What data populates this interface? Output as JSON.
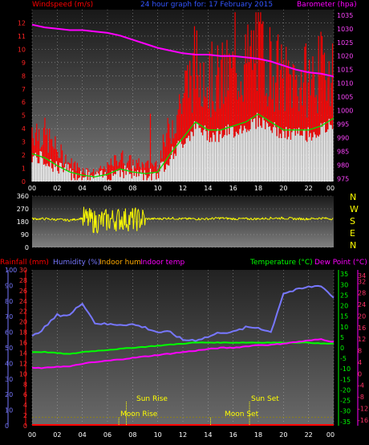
{
  "colors": {
    "windspeed": "#ff0000",
    "gust_fill": "#ffffff",
    "title": "#3355ff",
    "barometer": "#ff00ff",
    "direction": "#ffff00",
    "rainfall": "#ff0000",
    "humidity": "#7777ff",
    "indoor_hum": "#ffaa00",
    "indoor_temp": "#ff00ff",
    "temperature": "#00ff00",
    "dew_point": "#ff00ff",
    "moon_sun": "#ffff00",
    "axis_text": "#ffffff"
  },
  "header": {
    "windspeed": "Windspeed (m/s)",
    "title": "24 hour graph for: 17 February 2015",
    "barometer": "Barometer (hpa)",
    "rainfall": "Rainfall (mm)",
    "humidity": "Humidity (%)",
    "indoor_hum": "Indoor hum",
    "indoor_temp": "Indoor temp",
    "temperature": "Temperature (°C)",
    "dew_point": "Dew Point (°C)"
  },
  "compass": [
    "N",
    "W",
    "S",
    "E",
    "N"
  ],
  "events": {
    "sun_rise": "Sun Rise",
    "sun_set": "Sun Set",
    "moon_rise": "Moon Rise",
    "moon_set": "Moon Set"
  },
  "chart_data": [
    {
      "type": "line",
      "title": "24 hour graph for: 17 February 2015",
      "ylabel": "Windspeed (m/s)",
      "y2label": "Barometer (hpa)",
      "x_ticks": [
        "00",
        "02",
        "04",
        "06",
        "08",
        "10",
        "12",
        "14",
        "16",
        "18",
        "20",
        "22",
        "00"
      ],
      "ylim": [
        0,
        13
      ],
      "y_ticks": [
        0,
        1,
        2,
        3,
        4,
        5,
        6,
        7,
        8,
        9,
        10,
        11,
        12
      ],
      "y2lim": [
        974,
        1037
      ],
      "y2_ticks": [
        975,
        980,
        985,
        990,
        995,
        1000,
        1005,
        1010,
        1015,
        1020,
        1025,
        1030,
        1035
      ],
      "hours": [
        0,
        1,
        2,
        3,
        4,
        5,
        6,
        7,
        8,
        9,
        10,
        11,
        12,
        13,
        14,
        15,
        16,
        17,
        18,
        19,
        20,
        21,
        22,
        23,
        24
      ],
      "series": [
        {
          "name": "Windspeed (m/s)",
          "values": [
            3.5,
            3.0,
            2.0,
            1.2,
            0.8,
            0.6,
            0.9,
            1.6,
            1.2,
            1.0,
            1.2,
            3.5,
            5.5,
            7.5,
            6.5,
            6.5,
            7.0,
            7.5,
            8.5,
            7.5,
            6.5,
            6.5,
            6.5,
            7.0,
            8.0
          ]
        },
        {
          "name": "Barometer (hpa)",
          "values": [
            1031.5,
            1030.5,
            1030.0,
            1029.5,
            1029.5,
            1029.0,
            1028.5,
            1027.5,
            1026.0,
            1024.5,
            1023.0,
            1022.0,
            1021.0,
            1020.5,
            1020.5,
            1020.0,
            1020.0,
            1019.5,
            1019.0,
            1018.0,
            1016.5,
            1015.0,
            1014.0,
            1013.5,
            1012.5
          ]
        }
      ]
    },
    {
      "type": "scatter",
      "ylim": [
        0,
        360
      ],
      "y_ticks": [
        0,
        90,
        180,
        270,
        360
      ],
      "hours": [
        0,
        1,
        2,
        3,
        4,
        5,
        6,
        7,
        8,
        9,
        10,
        11,
        12,
        13,
        14,
        15,
        16,
        17,
        18,
        19,
        20,
        21,
        22,
        23,
        24
      ],
      "series": [
        {
          "values": [
            200,
            200,
            195,
            190,
            205,
            180,
            190,
            200,
            195,
            200,
            200,
            205,
            200,
            200,
            200,
            205,
            200,
            200,
            200,
            205,
            205,
            200,
            200,
            205,
            200
          ]
        }
      ]
    },
    {
      "type": "line",
      "x_ticks": [
        "00",
        "02",
        "04",
        "06",
        "08",
        "10",
        "12",
        "14",
        "16",
        "18",
        "20",
        "22",
        "00"
      ],
      "ylim": [
        0,
        100
      ],
      "humidity_ticks": [
        0,
        10,
        20,
        30,
        40,
        50,
        60,
        70,
        80,
        90,
        100
      ],
      "rain_ticks": [
        0,
        2,
        4,
        6,
        8,
        10,
        12,
        14,
        16,
        18,
        20,
        22,
        24,
        26,
        28,
        30
      ],
      "temp_ticks": [
        -35,
        -30,
        -25,
        -20,
        -15,
        -10,
        -5,
        0,
        5,
        10,
        15,
        20,
        25,
        30,
        35
      ],
      "dew_ticks": [
        -16,
        -12,
        -8,
        -4,
        0,
        4,
        8,
        12,
        16,
        20,
        24,
        28,
        32,
        34
      ],
      "hours": [
        0,
        1,
        2,
        3,
        4,
        5,
        6,
        7,
        8,
        9,
        10,
        11,
        12,
        13,
        14,
        15,
        16,
        17,
        18,
        19,
        20,
        21,
        22,
        23,
        24
      ],
      "series": [
        {
          "name": "Humidity (%)",
          "values": [
            57,
            63,
            71,
            71,
            79,
            66,
            65,
            65,
            65,
            63,
            60,
            60,
            55,
            55,
            57,
            60,
            60,
            63,
            63,
            60,
            85,
            87,
            89,
            90,
            82
          ]
        },
        {
          "name": "Temperature (°C)",
          "values": [
            -2.0,
            -2.0,
            -2.5,
            -3.0,
            -2.0,
            -1.5,
            -1.0,
            -0.5,
            0.0,
            0.5,
            1.0,
            1.5,
            2.0,
            2.5,
            2.5,
            2.5,
            2.5,
            2.5,
            2.5,
            2.5,
            2.5,
            2.5,
            2.5,
            2.0,
            2.0
          ]
        },
        {
          "name": "Dew Point (°C)",
          "values": [
            2.0,
            2.0,
            2.5,
            2.5,
            3.5,
            4.0,
            4.5,
            5.0,
            5.5,
            6.0,
            6.5,
            7.0,
            7.5,
            8.0,
            8.5,
            9.0,
            9.0,
            9.5,
            10.0,
            10.0,
            10.5,
            11.0,
            11.5,
            12.0,
            11.0
          ]
        },
        {
          "name": "Rainfall (mm)",
          "values": [
            0,
            0,
            0,
            0,
            0,
            0,
            0,
            0,
            0,
            0,
            0,
            0,
            0,
            0,
            0,
            0,
            0,
            0,
            0,
            0,
            0,
            0,
            0,
            0,
            0
          ]
        }
      ],
      "events": [
        {
          "label": "Sun Rise",
          "hour": 7.5
        },
        {
          "label": "Sun Set",
          "hour": 17.3
        },
        {
          "label": "Moon Rise",
          "hour": 6.9
        },
        {
          "label": "Moon Set",
          "hour": 14.2
        }
      ]
    }
  ]
}
